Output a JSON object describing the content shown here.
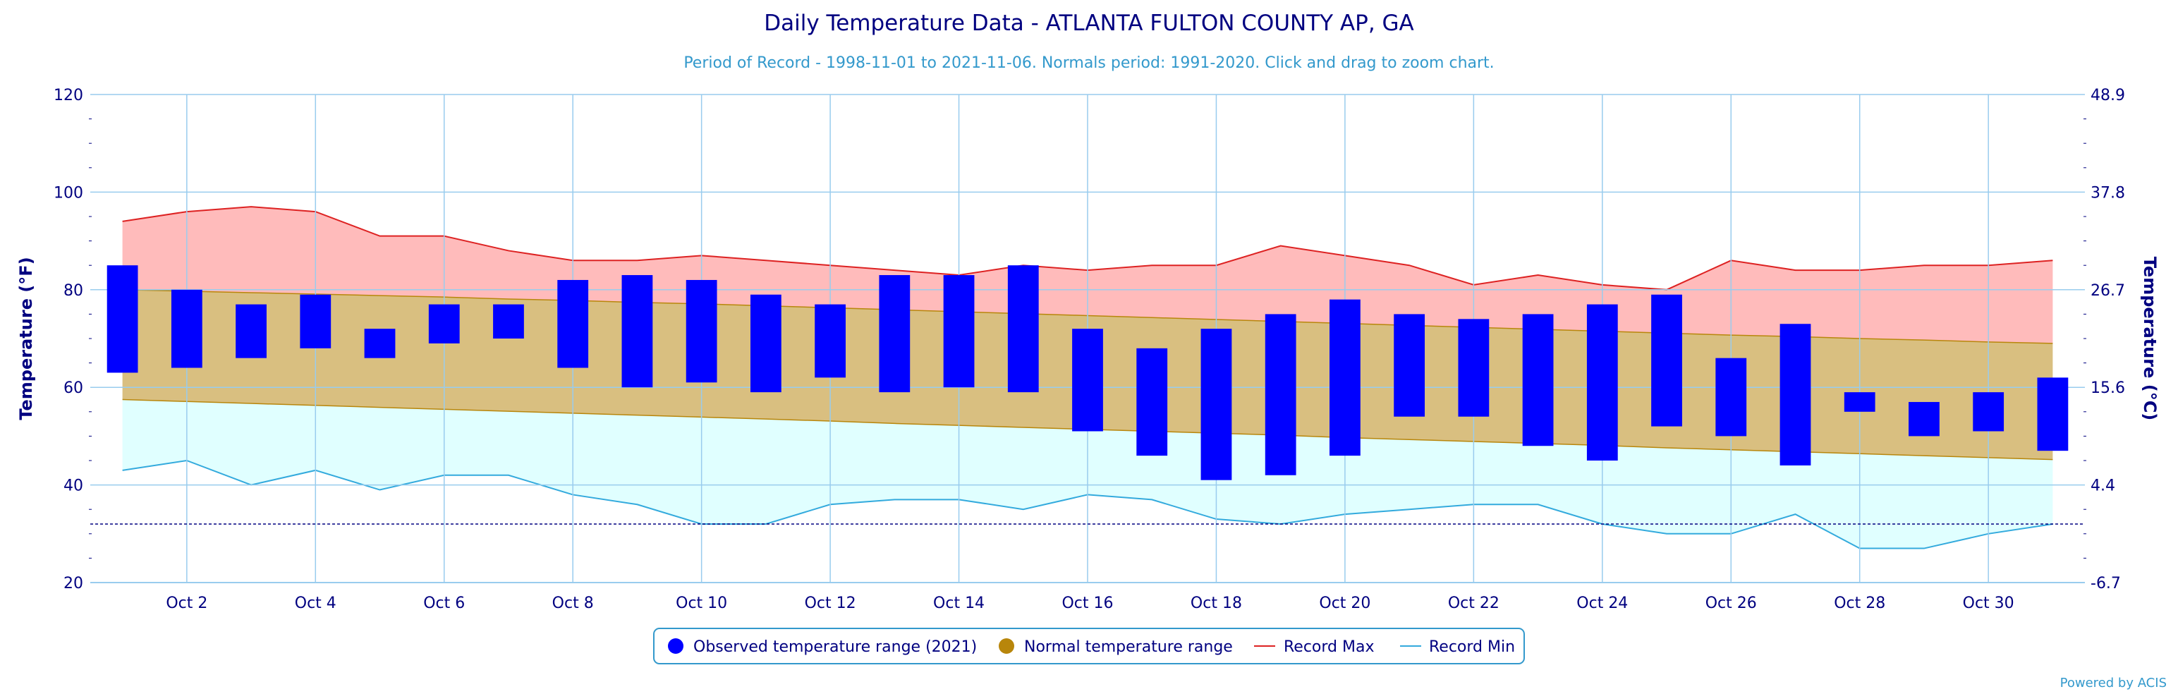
{
  "chart_data": {
    "type": "bar",
    "title": "Daily Temperature Data - ATLANTA FULTON COUNTY AP, GA",
    "subtitle": "Period of Record - 1998-11-01 to 2021-11-06. Normals period: 1991-2020. Click and drag to zoom chart.",
    "ylabel_left": "Temperature (°F)",
    "ylabel_right": "Temperature (°C)",
    "ylim": [
      20,
      120
    ],
    "y_ticks_f": [
      "20",
      "40",
      "60",
      "80",
      "100",
      "120"
    ],
    "y_ticks_c": [
      "-6.7",
      "4.4",
      "15.6",
      "26.7",
      "37.8",
      "48.9"
    ],
    "xlim": [
      0.5,
      31.5
    ],
    "x_tick_days": [
      2,
      4,
      6,
      8,
      10,
      12,
      14,
      16,
      18,
      20,
      22,
      24,
      26,
      28,
      30
    ],
    "x_tick_labels": [
      "Oct 2",
      "Oct 4",
      "Oct 6",
      "Oct 8",
      "Oct 10",
      "Oct 12",
      "Oct 14",
      "Oct 16",
      "Oct 18",
      "Oct 20",
      "Oct 22",
      "Oct 24",
      "Oct 26",
      "Oct 28",
      "Oct 30"
    ],
    "grid": true,
    "freezing_line_f": 32,
    "legend_position": "bottom-center",
    "days": [
      1,
      2,
      3,
      4,
      5,
      6,
      7,
      8,
      9,
      10,
      11,
      12,
      13,
      14,
      15,
      16,
      17,
      18,
      19,
      20,
      21,
      22,
      23,
      24,
      25,
      26,
      27,
      28,
      29,
      30,
      31
    ],
    "observed_min": [
      63,
      64,
      66,
      68,
      66,
      69,
      70,
      64,
      60,
      61,
      59,
      62,
      59,
      60,
      59,
      51,
      46,
      41,
      42,
      46,
      54,
      54,
      48,
      45,
      52,
      50,
      44,
      55,
      50,
      51,
      47
    ],
    "observed_max": [
      85,
      80,
      77,
      79,
      72,
      77,
      77,
      82,
      83,
      82,
      79,
      77,
      83,
      83,
      85,
      72,
      68,
      72,
      75,
      78,
      75,
      74,
      75,
      77,
      79,
      66,
      73,
      59,
      57,
      59,
      62
    ],
    "normal_max": [
      80,
      79.7,
      79.4,
      79.1,
      78.8,
      78.5,
      78.1,
      77.8,
      77.4,
      77.1,
      76.7,
      76.3,
      75.9,
      75.5,
      75.1,
      74.7,
      74.3,
      73.9,
      73.5,
      73.1,
      72.7,
      72.3,
      71.9,
      71.5,
      71.1,
      70.7,
      70.4,
      70,
      69.7,
      69.3,
      69
    ],
    "normal_min": [
      57.5,
      57.1,
      56.7,
      56.3,
      55.9,
      55.5,
      55.1,
      54.7,
      54.3,
      53.9,
      53.5,
      53.1,
      52.6,
      52.2,
      51.8,
      51.4,
      51,
      50.6,
      50.2,
      49.7,
      49.3,
      48.9,
      48.5,
      48.1,
      47.6,
      47.2,
      46.8,
      46.4,
      46,
      45.6,
      45.2
    ],
    "record_max": [
      94,
      96,
      97,
      96,
      91,
      91,
      88,
      86,
      86,
      87,
      86,
      85,
      84,
      83,
      85,
      84,
      85,
      85,
      89,
      87,
      85,
      81,
      83,
      81,
      80,
      86,
      84,
      84,
      85,
      85,
      86
    ],
    "record_min": [
      43,
      45,
      40,
      43,
      39,
      42,
      42,
      38,
      36,
      32,
      32,
      36,
      37,
      37,
      35,
      38,
      37,
      33,
      32,
      34,
      35,
      36,
      36,
      32,
      30,
      30,
      34,
      27,
      27,
      30,
      32
    ],
    "colors": {
      "observed": "#0000ff",
      "normal_band": "#d9bf80",
      "normal_line": "#b8860b",
      "record_max_fill": "#ffbbbb",
      "record_max_line": "#dd2222",
      "record_min_fill": "#e0ffff",
      "record_min_line": "#33aadd",
      "grid": "#99ccee",
      "axis_text": "#000080",
      "freezing_line": "#000080"
    },
    "legend": [
      {
        "key": "observed",
        "label": "Observed temperature range (2021)",
        "symbol": "circle"
      },
      {
        "key": "normal",
        "label": "Normal temperature range",
        "symbol": "circle"
      },
      {
        "key": "record_max",
        "label": "Record Max",
        "symbol": "line"
      },
      {
        "key": "record_min",
        "label": "Record Min",
        "symbol": "line"
      }
    ],
    "credit": "Powered by ACIS"
  }
}
